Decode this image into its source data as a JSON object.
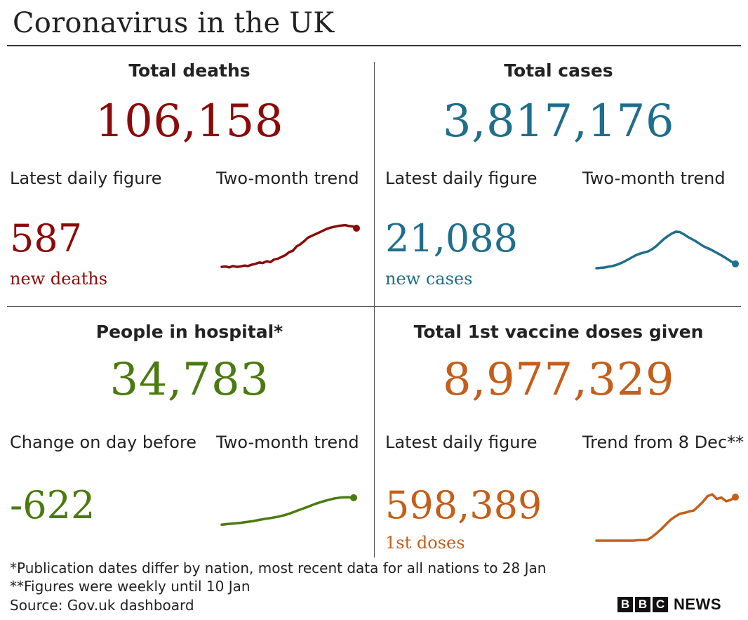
{
  "title": "Coronavirus in the UK",
  "colors": {
    "deaths": "#8b0a0a",
    "cases": "#1f6e8c",
    "hospital": "#4b7a0f",
    "vaccine": "#c45e1a"
  },
  "panels": {
    "deaths": {
      "heading": "Total deaths",
      "total": "106,158",
      "left_label": "Latest daily figure",
      "right_label": "Two-month trend",
      "daily_value": "587",
      "daily_unit": "new deaths"
    },
    "cases": {
      "heading": "Total cases",
      "total": "3,817,176",
      "left_label": "Latest daily figure",
      "right_label": "Two-month trend",
      "daily_value": "21,088",
      "daily_unit": "new cases"
    },
    "hospital": {
      "heading": "People in hospital*",
      "total": "34,783",
      "left_label": "Change on day before",
      "right_label": "Two-month trend",
      "daily_value": "-622",
      "daily_unit": ""
    },
    "vaccine": {
      "heading": "Total 1st vaccine doses given",
      "total": "8,977,329",
      "left_label": "Latest daily figure",
      "right_label": "Trend from 8 Dec**",
      "daily_value": "598,389",
      "daily_unit": "1st doses"
    }
  },
  "footnotes": [
    "*Publication dates differ by nation, most recent data for all nations to 28 Jan",
    "**Figures were weekly until 10 Jan",
    "Source: Gov.uk dashboard"
  ],
  "logo": {
    "letters": [
      "B",
      "B",
      "C"
    ],
    "word": "NEWS"
  },
  "chart_data": [
    {
      "type": "line",
      "series": [
        {
          "values": [
            0.03,
            0.04,
            0.02,
            0.05,
            0.03,
            0.04,
            0.06,
            0.05,
            0.08,
            0.1,
            0.13,
            0.12,
            0.16,
            0.14,
            0.2,
            0.22,
            0.26,
            0.3,
            0.37,
            0.4,
            0.5,
            0.55,
            0.62,
            0.7,
            0.74,
            0.78,
            0.82,
            0.86,
            0.9,
            0.93,
            0.95,
            0.97,
            0.98,
            0.99,
            0.97,
            0.96,
            0.92
          ]
        }
      ]
    },
    {
      "type": "line",
      "series": [
        {
          "values": [
            0.0,
            0.01,
            0.02,
            0.04,
            0.06,
            0.09,
            0.13,
            0.18,
            0.24,
            0.3,
            0.36,
            0.4,
            0.43,
            0.46,
            0.52,
            0.6,
            0.7,
            0.8,
            0.88,
            0.95,
            1.0,
            0.99,
            0.93,
            0.86,
            0.8,
            0.74,
            0.67,
            0.6,
            0.55,
            0.5,
            0.44,
            0.38,
            0.32,
            0.25,
            0.18,
            0.12
          ]
        }
      ]
    },
    {
      "type": "line",
      "series": [
        {
          "values": [
            0.02,
            0.04,
            0.06,
            0.08,
            0.11,
            0.14,
            0.18,
            0.22,
            0.25,
            0.29,
            0.34,
            0.41,
            0.49,
            0.57,
            0.65,
            0.73,
            0.8,
            0.86,
            0.91,
            0.94,
            0.95,
            0.93
          ]
        }
      ]
    },
    {
      "type": "line",
      "series": [
        {
          "values": [
            0.0,
            0.0,
            0.0,
            0.0,
            0.0,
            0.0,
            0.0,
            0.0,
            0.0,
            0.01,
            0.01,
            0.02,
            0.08,
            0.16,
            0.25,
            0.35,
            0.45,
            0.52,
            0.58,
            0.6,
            0.63,
            0.65,
            0.74,
            0.84,
            0.96,
            1.0,
            0.9,
            0.93,
            0.85,
            0.88,
            0.94
          ]
        }
      ]
    }
  ]
}
